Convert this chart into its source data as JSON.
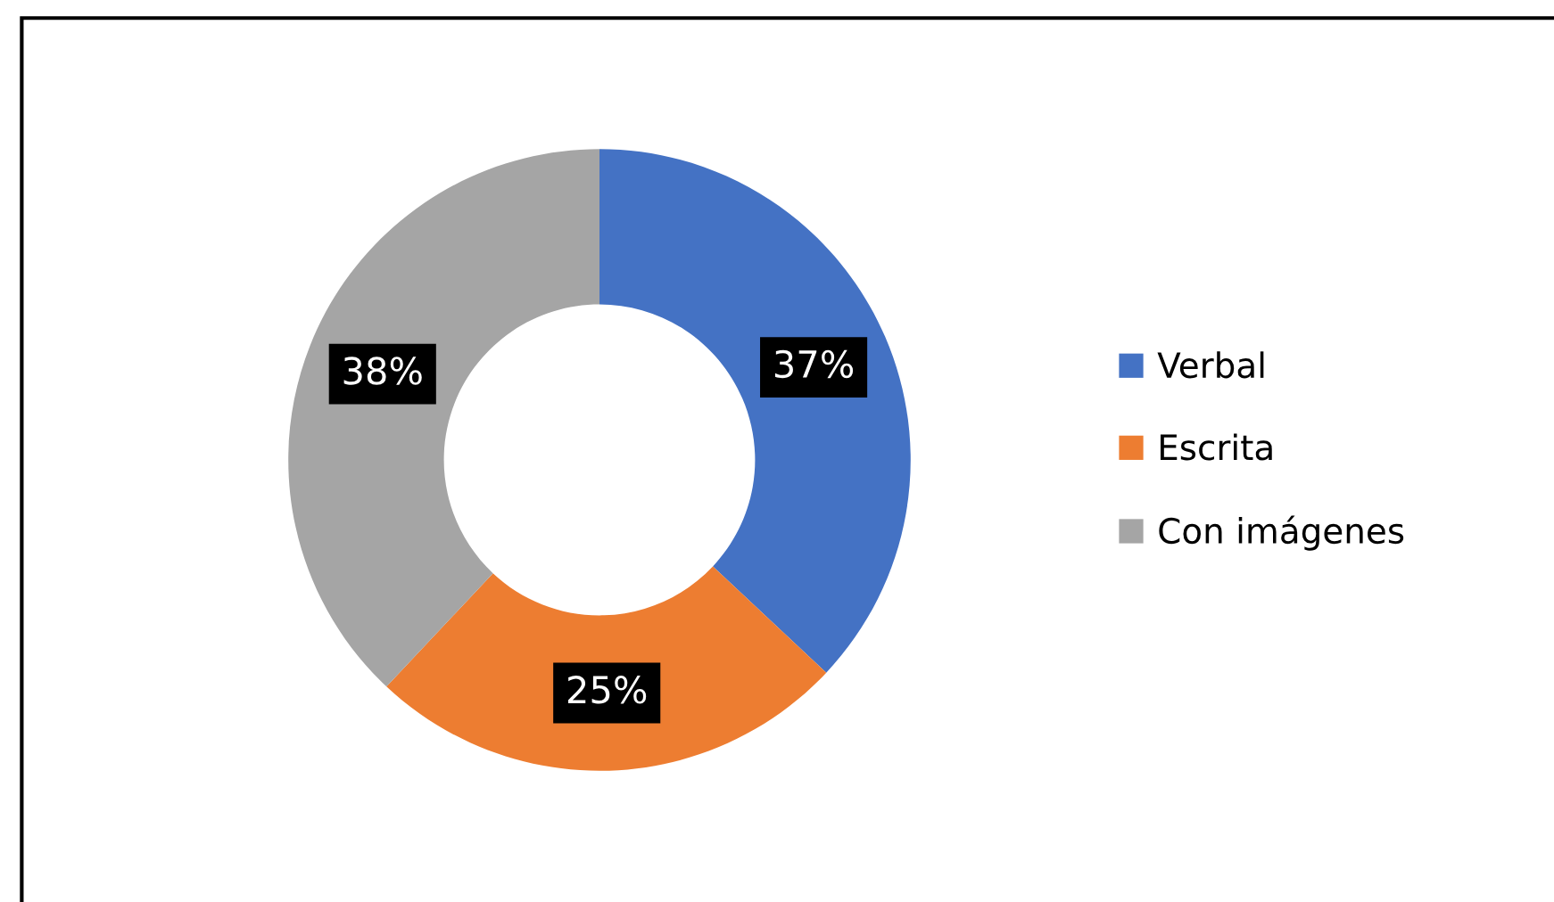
{
  "chart_data": {
    "type": "donut",
    "categories": [
      "Verbal",
      "Escrita",
      "Con imágenes"
    ],
    "values": [
      37,
      25,
      38
    ],
    "colors": [
      "#4472c4",
      "#ed7d31",
      "#a5a5a5"
    ],
    "value_labels": [
      "37%",
      "25%",
      "38%"
    ],
    "legend": "right"
  }
}
